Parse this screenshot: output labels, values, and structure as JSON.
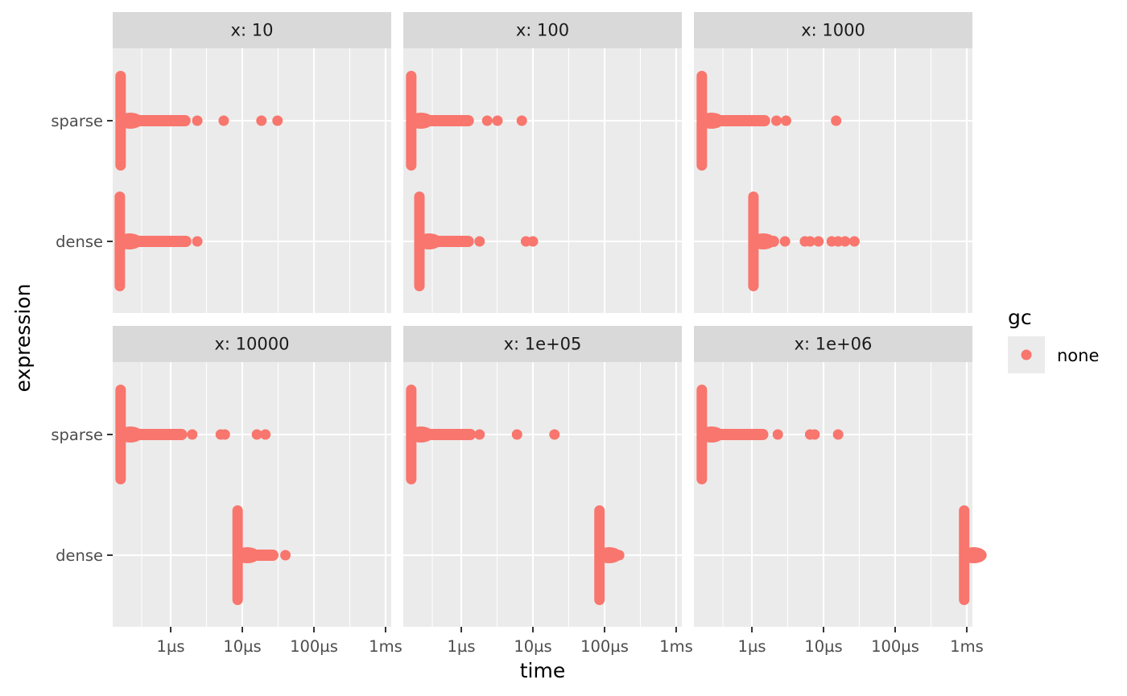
{
  "chart_data": {
    "type": "scatter",
    "facet_var": "x",
    "facets": [
      "x: 10",
      "x: 100",
      "x: 1000",
      "x: 10000",
      "x: 1e+05",
      "x: 1e+06"
    ],
    "x_scale": "log10",
    "xlabel": "time",
    "ylabel": "expression",
    "xlim_seconds": [
      1.55e-07,
      0.0012
    ],
    "x_ticks": [
      {
        "value": 1e-06,
        "label": "1µs"
      },
      {
        "value": 1e-05,
        "label": "10µs"
      },
      {
        "value": 0.0001,
        "label": "100µs"
      },
      {
        "value": 0.001,
        "label": "1ms"
      }
    ],
    "categories": [
      "sparse",
      "dense"
    ],
    "legend": {
      "title": "gc",
      "entries": [
        "none"
      ],
      "position": "right"
    },
    "point_color": "#F8766D",
    "panel_color": "#EBEBEB",
    "strip_color": "#D9D9D9",
    "grid": true,
    "panels": [
      {
        "label": "x: 10",
        "series": {
          "sparse": {
            "core": 2e-07,
            "tail_end": 1.9e-06,
            "outliers": [
              2.35e-06,
              5.5e-06,
              1.85e-05,
              3.1e-05
            ]
          },
          "dense": {
            "core": 1.95e-07,
            "tail_end": 1.95e-06,
            "outliers": [
              2.35e-06
            ]
          }
        }
      },
      {
        "label": "x: 100",
        "series": {
          "sparse": {
            "core": 2e-07,
            "tail_end": 1.5e-06,
            "outliers": [
              2.3e-06,
              3.2e-06,
              7e-06
            ]
          },
          "dense": {
            "core": 2.6e-07,
            "tail_end": 1.5e-06,
            "outliers": [
              1.8e-06,
              8e-06,
              1e-05
            ]
          }
        }
      },
      {
        "label": "x: 1000",
        "series": {
          "sparse": {
            "core": 2e-07,
            "tail_end": 1.8e-06,
            "outliers": [
              2.2e-06,
              3e-06,
              1.5e-05
            ]
          },
          "dense": {
            "core": 1.05e-06,
            "tail_end": 2.4e-06,
            "outliers": [
              2.9e-06,
              5.5e-06,
              6.5e-06,
              8.5e-06,
              1.3e-05,
              1.6e-05,
              2e-05,
              2.7e-05
            ]
          }
        }
      },
      {
        "label": "x: 10000",
        "series": {
          "sparse": {
            "core": 2e-07,
            "tail_end": 1.7e-06,
            "outliers": [
              2e-06,
              5e-06,
              5.7e-06,
              1.6e-05,
              2.1e-05
            ]
          },
          "dense": {
            "core": 8.6e-06,
            "tail_end": 3.2e-05,
            "outliers": [
              4e-05
            ]
          }
        }
      },
      {
        "label": "x: 1e+05",
        "series": {
          "sparse": {
            "core": 2e-07,
            "tail_end": 1.6e-06,
            "outliers": [
              1.8e-06,
              6e-06,
              2e-05
            ]
          },
          "dense": {
            "core": 8.5e-05,
            "tail_end": 0.00015,
            "outliers": [
              0.00016
            ]
          }
        }
      },
      {
        "label": "x: 1e+06",
        "series": {
          "sparse": {
            "core": 2e-07,
            "tail_end": 1.7e-06,
            "outliers": [
              2.3e-06,
              6.5e-06,
              7.5e-06,
              1.6e-05
            ]
          },
          "dense": {
            "core": 0.00092,
            "tail_end": 0.00098,
            "outliers": [
              0.00105
            ]
          }
        }
      }
    ]
  }
}
